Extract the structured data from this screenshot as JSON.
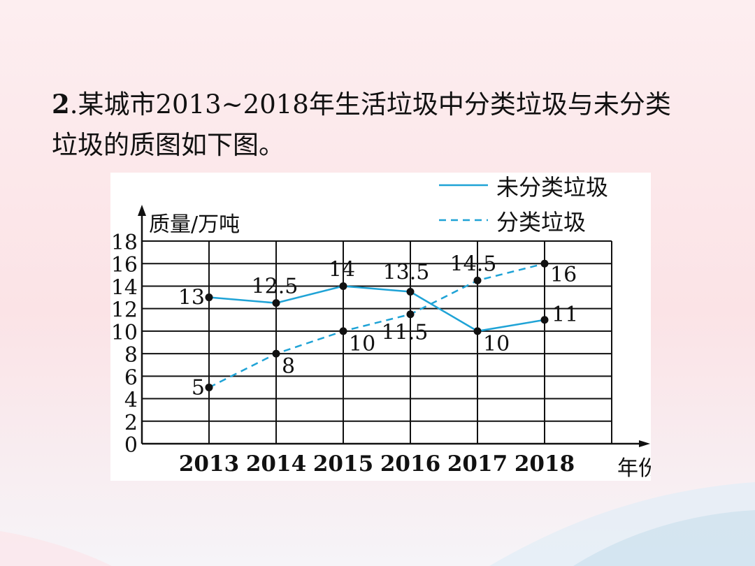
{
  "question": {
    "number": "2",
    "line1": ".某城市2013~2018年生活垃圾中分类垃圾与未分类",
    "line2": "垃圾的质图如下图。"
  },
  "colors": {
    "series": "#1fa3d6",
    "grid": "#111111",
    "background_panel": "#ffffff"
  },
  "chart_data": {
    "type": "line",
    "ylabel": "质量/万吨",
    "xlabel": "年份",
    "categories": [
      "2013",
      "2014",
      "2015",
      "2016",
      "2017",
      "2018"
    ],
    "ylim": [
      0,
      18
    ],
    "yticks": [
      0,
      2,
      4,
      6,
      8,
      10,
      12,
      14,
      16,
      18
    ],
    "grid": true,
    "legend_position": "top-right",
    "series": [
      {
        "name": "未分类垃圾",
        "style": "solid",
        "values": [
          13,
          12.5,
          14,
          13.5,
          10,
          11
        ],
        "labels": [
          "13",
          "12.5",
          "14",
          "13.5",
          "10",
          "11"
        ]
      },
      {
        "name": "分类垃圾",
        "style": "dashed",
        "values": [
          5,
          8,
          10,
          11.5,
          14.5,
          16
        ],
        "labels": [
          "5",
          "8",
          "10",
          "11.5",
          "14.5",
          "16"
        ]
      }
    ]
  }
}
